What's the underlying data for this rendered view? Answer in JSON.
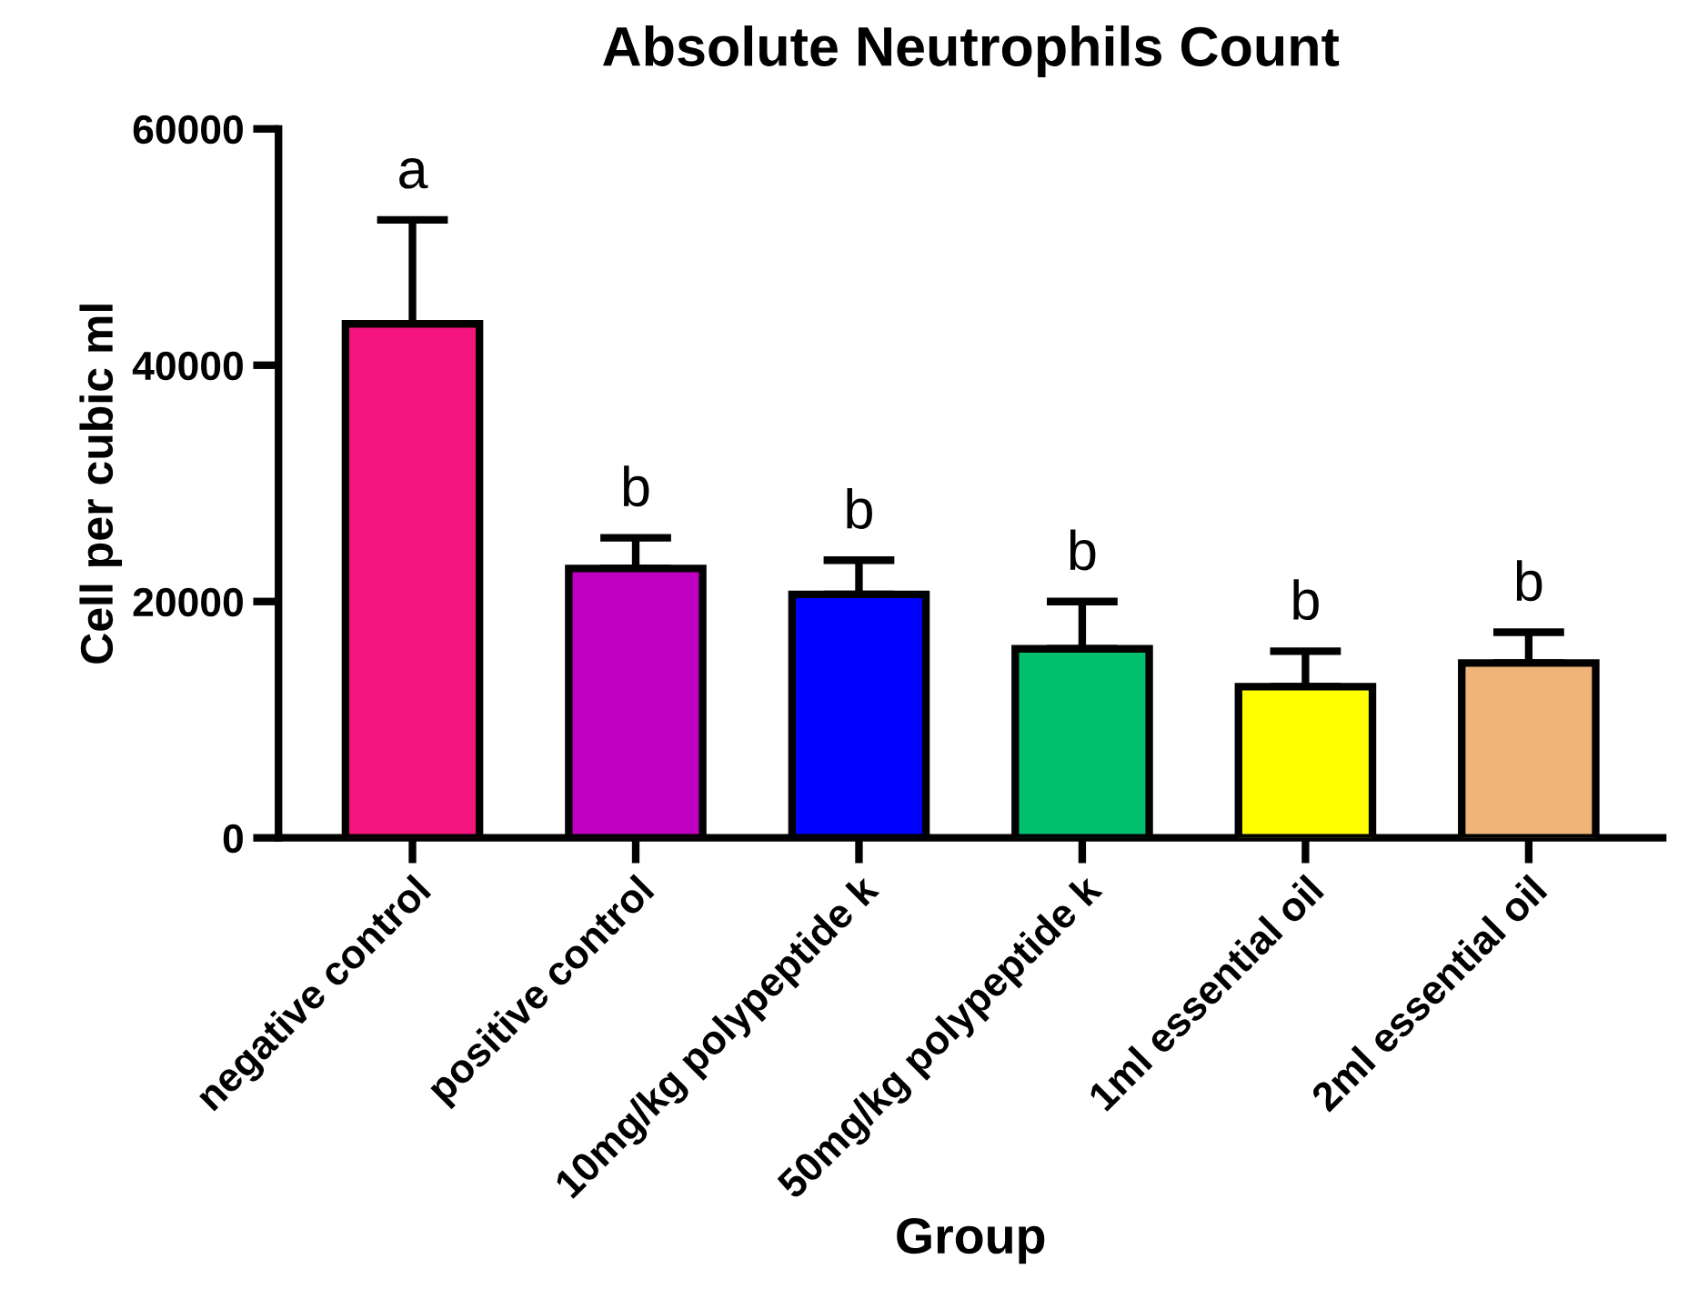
{
  "chart_data": {
    "type": "bar",
    "title": "Absolute Neutrophils Count",
    "xlabel": "Group",
    "ylabel": "Cell per cubic ml",
    "categories": [
      "negative control",
      "positive control",
      "10mg/kg polypeptide k",
      "50mg/kg polypeptide k",
      "1ml essential oil",
      "2ml essential oil"
    ],
    "values": [
      43500,
      22800,
      20600,
      16000,
      12800,
      14800
    ],
    "errors": [
      [
        43500,
        52300
      ],
      [
        22800,
        25400
      ],
      [
        20600,
        23500
      ],
      [
        16000,
        20000
      ],
      [
        12800,
        15800
      ],
      [
        14800,
        17400
      ]
    ],
    "colors": [
      "#f5157e",
      "#c000c0",
      "#0000ff",
      "#00c070",
      "#ffff00",
      "#f0b478"
    ],
    "annotations": [
      "a",
      "b",
      "b",
      "b",
      "b",
      "b"
    ],
    "ylim": [
      0,
      60000
    ],
    "yticks": [
      0,
      20000,
      40000,
      60000
    ],
    "grid": false,
    "legend": false
  }
}
